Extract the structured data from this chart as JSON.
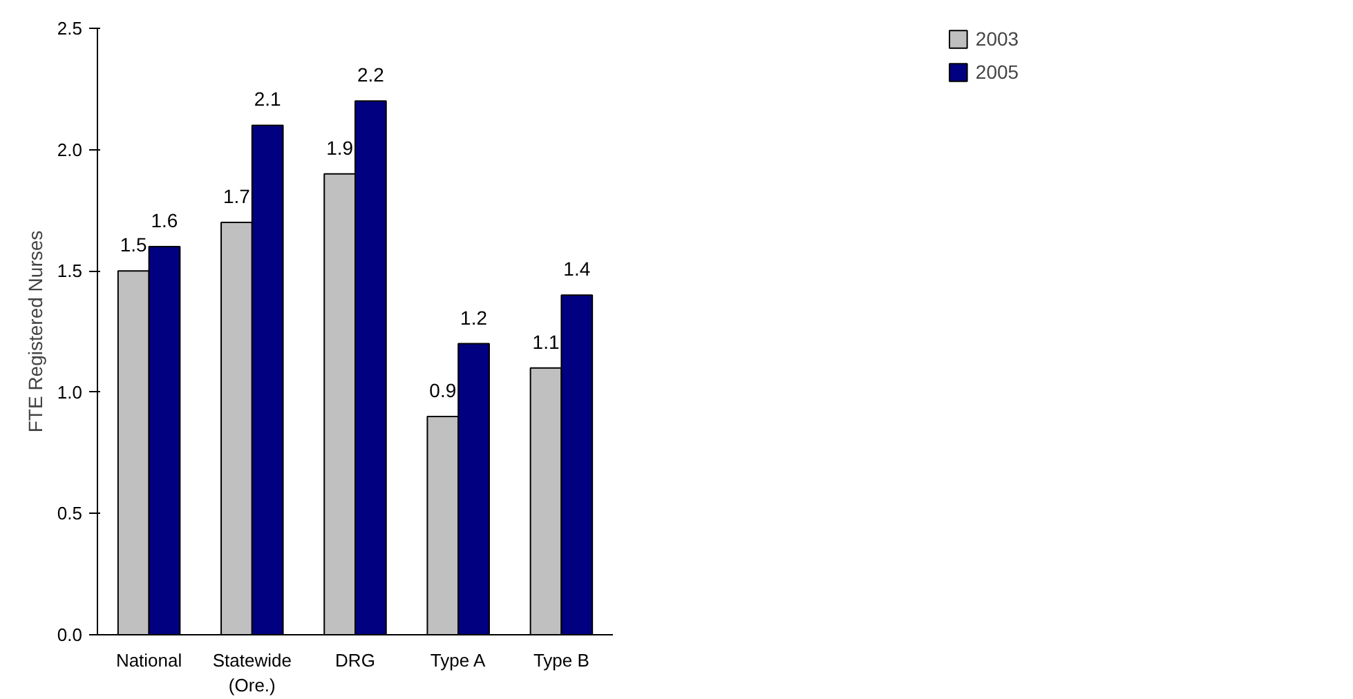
{
  "chart_data": {
    "type": "bar",
    "ylabel": "FTE Registered Nurses",
    "categories": [
      "National",
      "Statewide\n(Ore.)",
      "DRG",
      "Type A",
      "Type B"
    ],
    "series": [
      {
        "name": "2003",
        "color": "#c0c0c0",
        "values": [
          1.5,
          1.7,
          1.9,
          0.9,
          1.1
        ]
      },
      {
        "name": "2005",
        "color": "#000080",
        "values": [
          1.6,
          2.1,
          2.2,
          1.2,
          1.4
        ]
      }
    ],
    "ylim": [
      0,
      2.5
    ],
    "yticks": [
      "0.0",
      0.5,
      "1.0",
      1.5,
      "2.0",
      2.5
    ],
    "data_labels": true,
    "legend": "top right",
    "grid": false
  }
}
